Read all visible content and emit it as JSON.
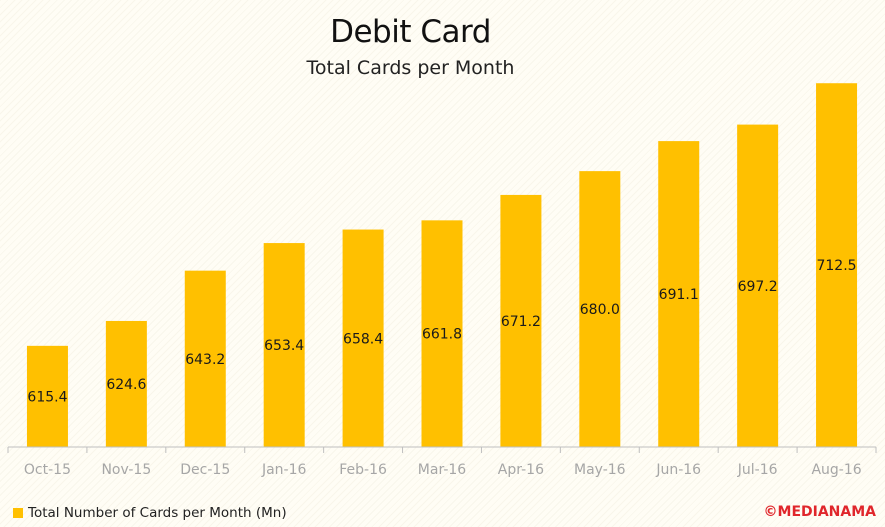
{
  "chart_data": {
    "type": "bar",
    "title": "Debit Card",
    "subtitle": "Total Cards per Month",
    "categories": [
      "Oct-15",
      "Nov-15",
      "Dec-15",
      "Jan-16",
      "Feb-16",
      "Mar-16",
      "Apr-16",
      "May-16",
      "Jun-16",
      "Jul-16",
      "Aug-16"
    ],
    "series": [
      {
        "name": "Total Number of Cards per Month (Mn)",
        "values": [
          615.4,
          624.6,
          643.2,
          653.4,
          658.4,
          661.8,
          671.2,
          680.0,
          691.1,
          697.2,
          712.5
        ],
        "labels": [
          "615.4",
          "624.6",
          "643.2",
          "653.4",
          "658.4",
          "661.8",
          "671.2",
          "680.0",
          "691.1",
          "697.2",
          "712.5"
        ]
      }
    ],
    "ylim": [
      578,
      727
    ],
    "grid": false,
    "legend_position": "bottom-left"
  },
  "colors": {
    "bar": "#ffc000",
    "axis": "#bfbfbf",
    "tick_label": "#a6a6a6",
    "brand": "#e0262b"
  },
  "brand": "©MEDIANAMA"
}
